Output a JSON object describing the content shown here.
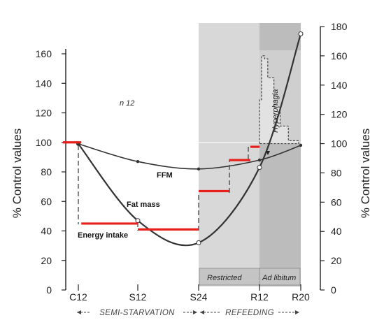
{
  "chart_data": {
    "type": "line",
    "x_ticks": [
      "C12",
      "S12",
      "S24",
      "R12",
      "R20"
    ],
    "left_y_label": "% Control values",
    "right_y_label": "% Control values",
    "left_ylim": [
      0,
      160
    ],
    "right_ylim": [
      0,
      180
    ],
    "left_yticks": [
      0,
      20,
      40,
      60,
      80,
      100,
      120,
      140,
      160
    ],
    "right_yticks": [
      0,
      20,
      40,
      60,
      80,
      100,
      120,
      140,
      160,
      180
    ],
    "annotation_n": "n 12",
    "series": [
      {
        "name": "FFM",
        "points": [
          [
            "C12",
            99
          ],
          [
            "S12",
            87
          ],
          [
            "S24",
            82
          ],
          [
            "R12",
            88
          ],
          [
            "R20",
            98
          ]
        ]
      },
      {
        "name": "Fat mass",
        "points": [
          [
            "C12",
            99
          ],
          [
            "S12",
            47
          ],
          [
            "S24",
            32
          ],
          [
            "R12",
            83
          ],
          [
            "R20",
            175
          ]
        ]
      },
      {
        "name": "Energy intake",
        "segments": [
          {
            "from": 0,
            "to": 0.05,
            "value": 100
          },
          {
            "from": 0.05,
            "to": 1.0,
            "value": 45
          },
          {
            "from": 1.0,
            "to": 2.0,
            "value": 41
          },
          {
            "from": 2.0,
            "to": 2.5,
            "value": 67
          },
          {
            "from": 2.5,
            "to": 2.85,
            "value": 88
          },
          {
            "from": 2.85,
            "to": 3.0,
            "value": 97
          }
        ]
      }
    ],
    "hyperphagia_right_axis": [
      {
        "from": 3.0,
        "to": 3.05,
        "value": 130
      },
      {
        "from": 3.05,
        "to": 3.12,
        "value": 160
      },
      {
        "from": 3.12,
        "to": 3.2,
        "value": 158
      },
      {
        "from": 3.2,
        "to": 3.35,
        "value": 145
      },
      {
        "from": 3.35,
        "to": 3.5,
        "value": 125
      },
      {
        "from": 3.5,
        "to": 3.7,
        "value": 112
      },
      {
        "from": 3.7,
        "to": 3.95,
        "value": 102
      }
    ],
    "phases": {
      "restricted": "Restricted",
      "ad_libitum": "Ad libitum",
      "semi_starvation": "SEMI-STARVATION",
      "refeeding": "REFEEDING",
      "hyperphagia": "Hyperphagia"
    },
    "colors": {
      "energy_intake_red": "#e8201c",
      "curve": "#333333",
      "restricted_shade": "#d6d6d6",
      "ad_lib_shade": "#b9b9b9"
    }
  }
}
